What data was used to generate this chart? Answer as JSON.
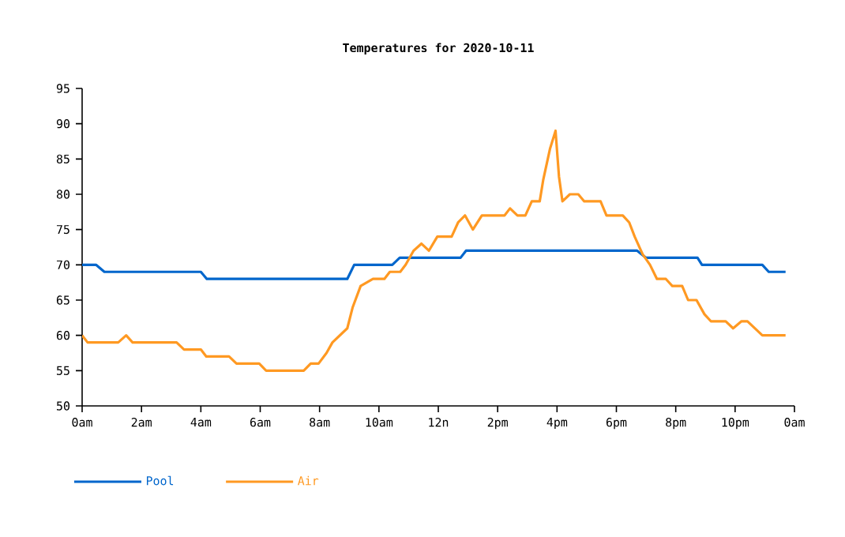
{
  "chart_data": {
    "type": "line",
    "title": "Temperatures for 2020-10-11",
    "xlim": [
      "2020-10-11T00:00",
      "2020-10-12T00:00"
    ],
    "xticks": [
      {
        "value": "2020-10-11T00:00",
        "label": "0am"
      },
      {
        "value": "2020-10-11T02:00",
        "label": "2am"
      },
      {
        "value": "2020-10-11T04:00",
        "label": "4am"
      },
      {
        "value": "2020-10-11T06:00",
        "label": "6am"
      },
      {
        "value": "2020-10-11T08:00",
        "label": "8am"
      },
      {
        "value": "2020-10-11T10:00",
        "label": "10am"
      },
      {
        "value": "2020-10-11T12:00",
        "label": "12n"
      },
      {
        "value": "2020-10-11T14:00",
        "label": "2pm"
      },
      {
        "value": "2020-10-11T16:00",
        "label": "4pm"
      },
      {
        "value": "2020-10-11T18:00",
        "label": "6pm"
      },
      {
        "value": "2020-10-11T20:00",
        "label": "8pm"
      },
      {
        "value": "2020-10-11T22:00",
        "label": "10pm"
      },
      {
        "value": "2020-10-12T00:00",
        "label": "0am"
      }
    ],
    "ylim": [
      50,
      95
    ],
    "yticks": [
      50,
      55,
      60,
      65,
      70,
      75,
      80,
      85,
      90,
      95
    ],
    "grid": false,
    "legend": "bottom",
    "marker": "none",
    "line_style": "solid",
    "series": [
      {
        "name": "Pool",
        "color": "#0066cc",
        "x": [
          "2020-10-11T00:00",
          "2020-10-11T00:28",
          "2020-10-11T00:45",
          "2020-10-11T04:00",
          "2020-10-11T04:12",
          "2020-10-11T08:56",
          "2020-10-11T09:10",
          "2020-10-11T10:27",
          "2020-10-11T10:42",
          "2020-10-11T12:45",
          "2020-10-11T12:56",
          "2020-10-11T18:42",
          "2020-10-11T19:00",
          "2020-10-11T20:44",
          "2020-10-11T20:53",
          "2020-10-11T22:55",
          "2020-10-11T23:08",
          "2020-10-11T23:42"
        ],
        "values": [
          70,
          70,
          69,
          69,
          68,
          68,
          70,
          70,
          71,
          71,
          72,
          72,
          71,
          71,
          70,
          70,
          69,
          69
        ]
      },
      {
        "name": "Air",
        "color": "#ff9922",
        "x": [
          "2020-10-11T00:00",
          "2020-10-11T00:11",
          "2020-10-11T01:13",
          "2020-10-11T01:29",
          "2020-10-11T01:42",
          "2020-10-11T03:11",
          "2020-10-11T03:26",
          "2020-10-11T04:00",
          "2020-10-11T04:11",
          "2020-10-11T04:57",
          "2020-10-11T05:12",
          "2020-10-11T05:58",
          "2020-10-11T06:12",
          "2020-10-11T07:28",
          "2020-10-11T07:42",
          "2020-10-11T07:58",
          "2020-10-11T08:14",
          "2020-10-11T08:26",
          "2020-10-11T08:56",
          "2020-10-11T09:07",
          "2020-10-11T09:23",
          "2020-10-11T09:48",
          "2020-10-11T10:11",
          "2020-10-11T10:22",
          "2020-10-11T10:43",
          "2020-10-11T10:54",
          "2020-10-11T11:10",
          "2020-10-11T11:26",
          "2020-10-11T11:41",
          "2020-10-11T11:58",
          "2020-10-11T12:27",
          "2020-10-11T12:40",
          "2020-10-11T12:54",
          "2020-10-11T13:10",
          "2020-10-11T13:28",
          "2020-10-11T14:14",
          "2020-10-11T14:25",
          "2020-10-11T14:40",
          "2020-10-11T14:56",
          "2020-10-11T15:09",
          "2020-10-11T15:25",
          "2020-10-11T15:32",
          "2020-10-11T15:46",
          "2020-10-11T15:57",
          "2020-10-11T16:04",
          "2020-10-11T16:11",
          "2020-10-11T16:26",
          "2020-10-11T16:43",
          "2020-10-11T16:55",
          "2020-10-11T17:28",
          "2020-10-11T17:40",
          "2020-10-11T18:13",
          "2020-10-11T18:26",
          "2020-10-11T18:37",
          "2020-10-11T18:53",
          "2020-10-11T19:08",
          "2020-10-11T19:22",
          "2020-10-11T19:40",
          "2020-10-11T19:53",
          "2020-10-11T20:13",
          "2020-10-11T20:25",
          "2020-10-11T20:42",
          "2020-10-11T20:58",
          "2020-10-11T21:11",
          "2020-10-11T21:41",
          "2020-10-11T21:56",
          "2020-10-11T22:13",
          "2020-10-11T22:25",
          "2020-10-11T22:55",
          "2020-10-11T23:42"
        ],
        "values": [
          60,
          59,
          59,
          60,
          59,
          59,
          58,
          58,
          57,
          57,
          56,
          56,
          55,
          55,
          56,
          56,
          57.5,
          59,
          61,
          64,
          67,
          68,
          68,
          69,
          69,
          70,
          72,
          73,
          72,
          74,
          74,
          76,
          77,
          75,
          77,
          77,
          78,
          77,
          77,
          79,
          79,
          82,
          86.5,
          89,
          82.5,
          79,
          80,
          80,
          79,
          79,
          77,
          77,
          76,
          74,
          71.5,
          70,
          68,
          68,
          67,
          67,
          65,
          65,
          63,
          62,
          62,
          61,
          62,
          62,
          60,
          60
        ]
      }
    ]
  }
}
